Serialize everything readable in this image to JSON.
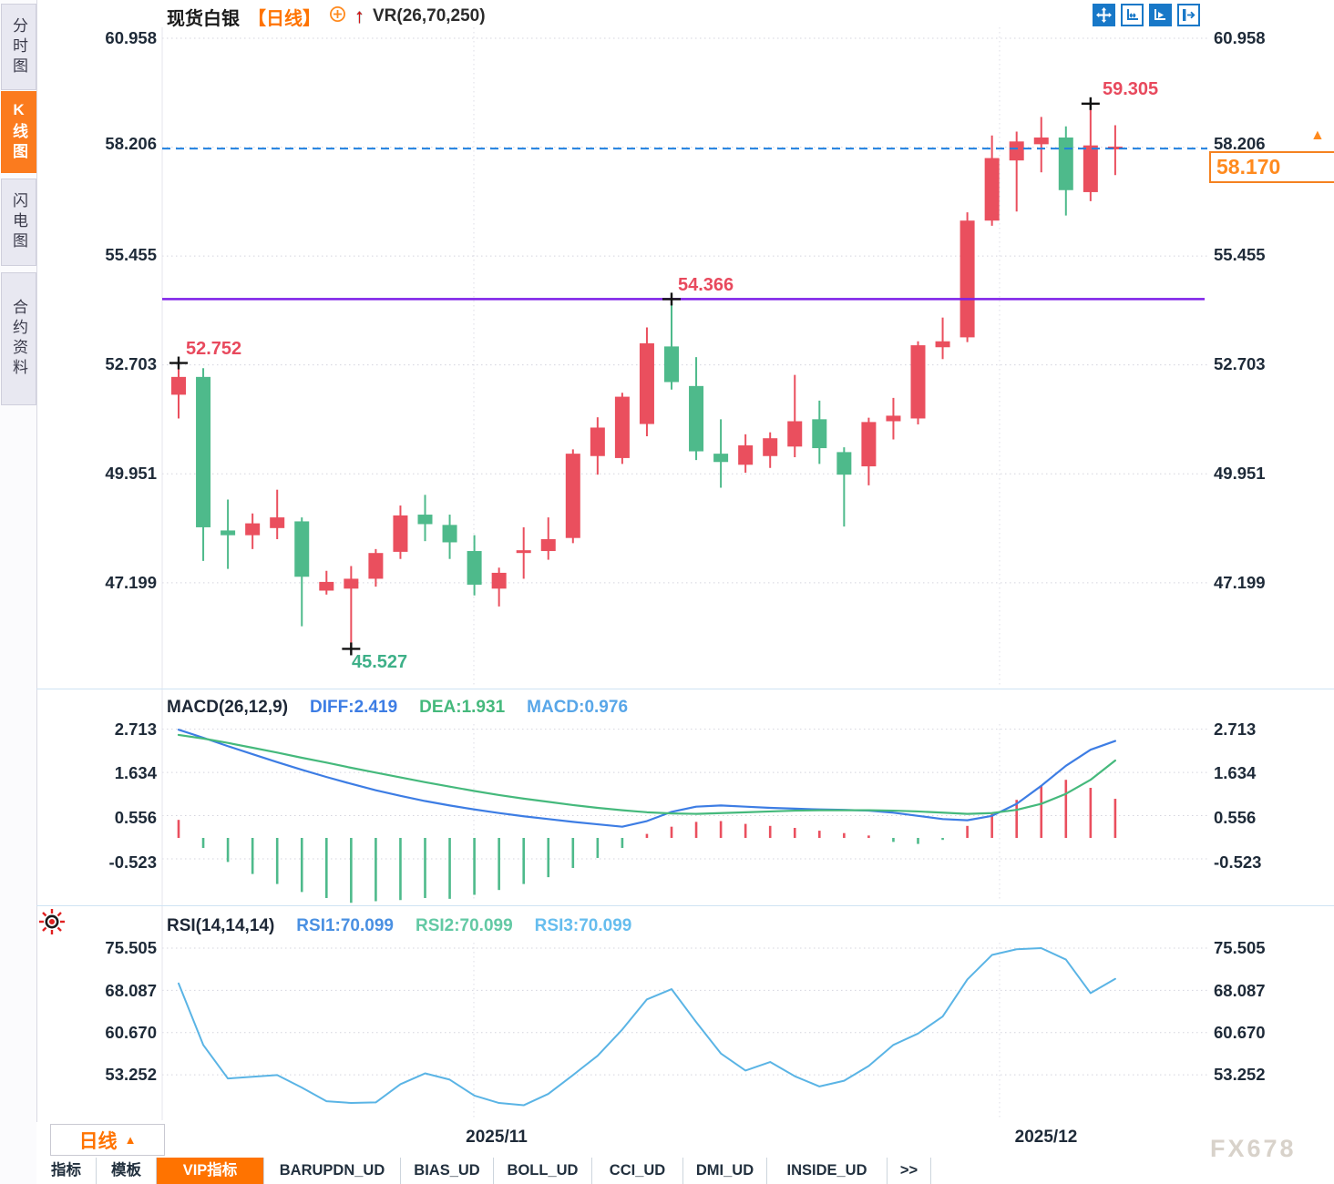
{
  "header": {
    "symbol": "现货白银",
    "period": "【日线】",
    "overlay_indicator": "VR(26,70,250)"
  },
  "sidebar": {
    "items": [
      {
        "label": "分时图",
        "active": false
      },
      {
        "label": "K线图",
        "active": true
      },
      {
        "label": "闪电图",
        "active": false
      },
      {
        "label": "合约资料",
        "active": false
      }
    ]
  },
  "toolbar": {
    "icons": [
      "move-crosshair",
      "scale-x-axis",
      "auto-scale-play",
      "collapse-right-panel"
    ]
  },
  "main_chart": {
    "y_axis_labels": [
      "60.958",
      "58.206",
      "55.455",
      "52.703",
      "49.951",
      "47.199"
    ],
    "x_axis_labels": [
      "2025/11",
      "2025/12"
    ],
    "current_price_tag": "58.170",
    "annotations": {
      "high_left": "52.752",
      "low": "45.527",
      "mid_high": "54.366",
      "high_right": "59.305"
    }
  },
  "macd_panel": {
    "title": "MACD(26,12,9)",
    "diff_label": "DIFF:2.419",
    "dea_label": "DEA:1.931",
    "macd_label": "MACD:0.976",
    "y_axis_labels": [
      "2.713",
      "1.634",
      "0.556",
      "-0.523"
    ]
  },
  "rsi_panel": {
    "title": "RSI(14,14,14)",
    "rsi1_label": "RSI1:70.099",
    "rsi2_label": "RSI2:70.099",
    "rsi3_label": "RSI3:70.099",
    "y_axis_labels": [
      "75.505",
      "68.087",
      "60.670",
      "53.252"
    ]
  },
  "period_selector": {
    "label": "日线"
  },
  "bottom_tabs": [
    {
      "label": "指标",
      "active": false
    },
    {
      "label": "模板",
      "active": false
    },
    {
      "label": "VIP指标",
      "active": true
    },
    {
      "label": "BARUPDN_UD",
      "active": false
    },
    {
      "label": "BIAS_UD",
      "active": false
    },
    {
      "label": "BOLL_UD",
      "active": false
    },
    {
      "label": "CCI_UD",
      "active": false
    },
    {
      "label": "DMI_UD",
      "active": false
    },
    {
      "label": "INSIDE_UD",
      "active": false
    },
    {
      "label": ">>",
      "active": false
    }
  ],
  "icons": {
    "price_arrow": "▲",
    "period_arrow": "▲"
  },
  "watermark": "FX678",
  "colors": {
    "up": "#ea4f5e",
    "down": "#4eba8b",
    "diff_line": "#3d7de4",
    "dea_line": "#45b97c",
    "rsi_line": "#5ab4e5",
    "dashed_price_line": "#1f80e0",
    "support_line": "#7d1fe8",
    "accent_orange": "#ff7300",
    "grid": "#d4d4de",
    "cross_marker": "#111111"
  },
  "chart_data": [
    {
      "type": "candlestick",
      "title": "现货白银 日线",
      "ylim": [
        44.5,
        61.0
      ],
      "y_ticks": [
        60.958,
        58.206,
        55.455,
        52.703,
        49.951,
        47.199
      ],
      "x_tick_labels": [
        "2025/11",
        "2025/12"
      ],
      "grid": true,
      "hlines": [
        {
          "value": 58.17,
          "style": "dashed",
          "color": "#1f80e0",
          "label": "58.170"
        },
        {
          "value": 54.366,
          "style": "solid",
          "color": "#7d1fe8",
          "label": "54.366"
        }
      ],
      "marked_points": [
        {
          "candle": 0,
          "at": "high",
          "text": "52.752"
        },
        {
          "candle": 7,
          "at": "low",
          "text": "45.527"
        },
        {
          "candle": 20,
          "at": "high",
          "text": "54.366"
        },
        {
          "candle": 37,
          "at": "high",
          "text": "59.305"
        }
      ],
      "ohlc": [
        [
          51.95,
          52.752,
          51.35,
          52.4
        ],
        [
          52.4,
          52.62,
          47.75,
          48.6
        ],
        [
          48.52,
          49.3,
          47.55,
          48.4
        ],
        [
          48.4,
          48.95,
          48.05,
          48.7
        ],
        [
          48.58,
          49.55,
          48.3,
          48.85
        ],
        [
          48.75,
          48.85,
          46.1,
          47.35
        ],
        [
          47.0,
          47.5,
          46.9,
          47.22
        ],
        [
          47.05,
          47.62,
          45.527,
          47.3
        ],
        [
          47.3,
          48.05,
          47.1,
          47.95
        ],
        [
          47.98,
          49.15,
          47.8,
          48.9
        ],
        [
          48.92,
          49.42,
          48.25,
          48.68
        ],
        [
          48.66,
          48.92,
          47.8,
          48.22
        ],
        [
          48.0,
          48.4,
          46.88,
          47.15
        ],
        [
          47.05,
          47.58,
          46.6,
          47.45
        ],
        [
          47.95,
          48.6,
          47.3,
          48.02
        ],
        [
          48.0,
          48.85,
          47.78,
          48.3
        ],
        [
          48.33,
          50.57,
          48.2,
          50.46
        ],
        [
          50.4,
          51.38,
          49.93,
          51.12
        ],
        [
          50.35,
          52.0,
          50.2,
          51.9
        ],
        [
          51.21,
          53.65,
          50.9,
          53.25
        ],
        [
          53.17,
          54.366,
          52.08,
          52.27
        ],
        [
          52.17,
          52.9,
          50.3,
          50.52
        ],
        [
          50.46,
          51.33,
          49.6,
          50.25
        ],
        [
          50.18,
          50.95,
          49.98,
          50.67
        ],
        [
          50.4,
          51.0,
          50.1,
          50.85
        ],
        [
          50.64,
          52.45,
          50.37,
          51.28
        ],
        [
          51.33,
          51.8,
          50.2,
          50.6
        ],
        [
          50.5,
          50.62,
          48.62,
          49.93
        ],
        [
          50.14,
          51.37,
          49.66,
          51.26
        ],
        [
          51.28,
          51.87,
          50.82,
          51.42
        ],
        [
          51.35,
          53.3,
          51.2,
          53.2
        ],
        [
          53.15,
          53.9,
          52.85,
          53.3
        ],
        [
          53.4,
          56.56,
          53.28,
          56.35
        ],
        [
          56.35,
          58.5,
          56.22,
          57.93
        ],
        [
          57.87,
          58.6,
          56.58,
          58.35
        ],
        [
          58.28,
          58.97,
          57.57,
          58.45
        ],
        [
          58.45,
          58.73,
          56.48,
          57.12
        ],
        [
          57.07,
          59.305,
          56.84,
          58.25
        ],
        [
          58.15,
          58.76,
          57.5,
          58.22
        ]
      ]
    },
    {
      "type": "bar+line",
      "title": "MACD(26,12,9)",
      "y_ticks": [
        2.713,
        1.634,
        0.556,
        -0.523
      ],
      "series": [
        {
          "name": "DIFF",
          "last": 2.419,
          "values": [
            2.7,
            2.5,
            2.29,
            2.09,
            1.89,
            1.7,
            1.52,
            1.35,
            1.19,
            1.05,
            0.92,
            0.81,
            0.71,
            0.62,
            0.54,
            0.47,
            0.4,
            0.34,
            0.28,
            0.42,
            0.65,
            0.78,
            0.81,
            0.78,
            0.75,
            0.73,
            0.71,
            0.7,
            0.68,
            0.63,
            0.55,
            0.47,
            0.44,
            0.55,
            0.85,
            1.3,
            1.8,
            2.2,
            2.419
          ]
        },
        {
          "name": "DEA",
          "last": 1.931,
          "values": [
            2.57,
            2.48,
            2.37,
            2.25,
            2.13,
            2.0,
            1.88,
            1.75,
            1.63,
            1.51,
            1.39,
            1.28,
            1.17,
            1.07,
            0.98,
            0.9,
            0.82,
            0.75,
            0.69,
            0.64,
            0.61,
            0.6,
            0.62,
            0.64,
            0.66,
            0.68,
            0.69,
            0.69,
            0.69,
            0.68,
            0.66,
            0.63,
            0.6,
            0.62,
            0.7,
            0.85,
            1.1,
            1.45,
            1.931
          ]
        },
        {
          "name": "MACD",
          "last": 0.976,
          "values": [
            0.45,
            -0.25,
            -0.6,
            -0.9,
            -1.15,
            -1.35,
            -1.5,
            -1.62,
            -1.58,
            -1.55,
            -1.5,
            -1.52,
            -1.42,
            -1.3,
            -1.15,
            -0.98,
            -0.75,
            -0.5,
            -0.25,
            0.1,
            0.28,
            0.4,
            0.42,
            0.35,
            0.3,
            0.25,
            0.18,
            0.12,
            0.06,
            -0.1,
            -0.15,
            -0.05,
            0.3,
            0.6,
            0.95,
            1.3,
            1.45,
            1.25,
            0.976
          ]
        }
      ]
    },
    {
      "type": "line",
      "title": "RSI(14,14,14)",
      "y_ticks": [
        75.505,
        68.087,
        60.67,
        53.252
      ],
      "series": [
        {
          "name": "RSI1",
          "last": 70.099,
          "values": [
            69.3,
            58.5,
            52.6,
            52.9,
            53.2,
            51.0,
            48.6,
            48.3,
            48.4,
            51.6,
            53.5,
            52.4,
            49.6,
            48.3,
            47.9,
            49.9,
            53.2,
            56.6,
            61.2,
            66.5,
            68.3,
            62.5,
            57.0,
            54.0,
            55.5,
            53.0,
            51.2,
            52.2,
            54.8,
            58.5,
            60.5,
            63.5,
            70.0,
            74.3,
            75.3,
            75.5,
            73.5,
            67.6,
            70.099
          ]
        }
      ]
    }
  ]
}
